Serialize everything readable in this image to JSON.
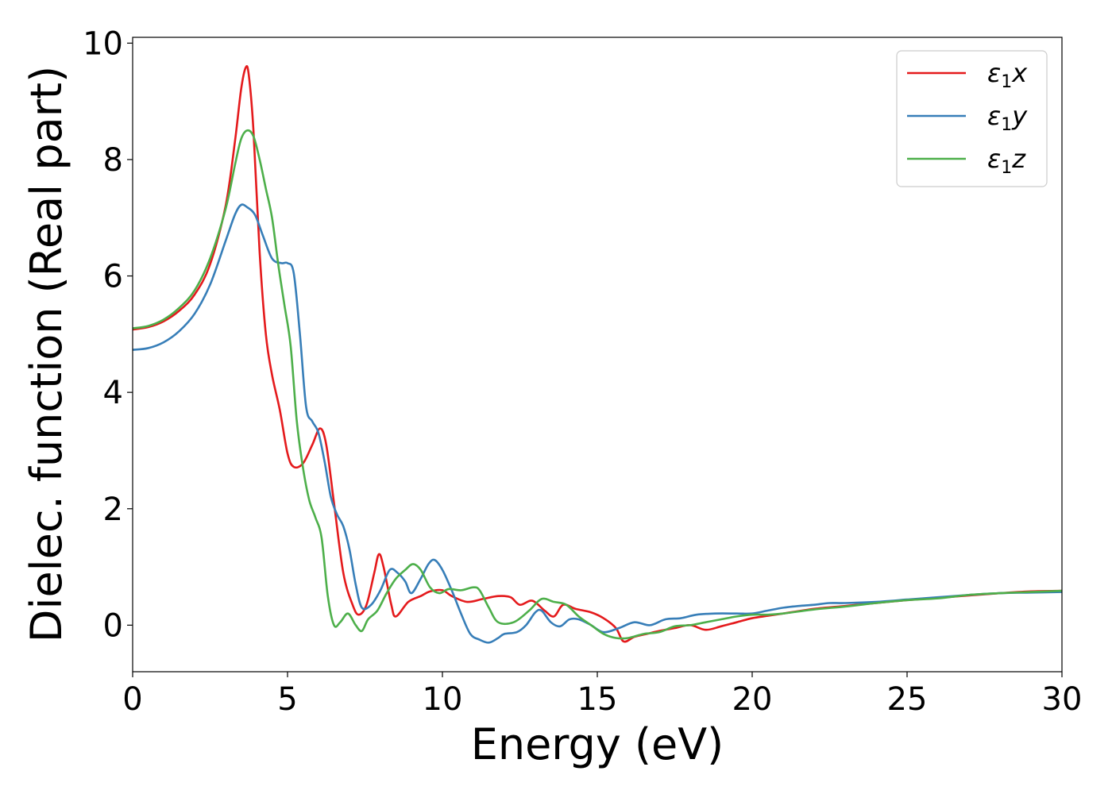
{
  "chart_data": {
    "type": "line",
    "xlabel": "Energy (eV)",
    "ylabel": "Dielec. function (Real part)",
    "xlim": [
      0,
      30
    ],
    "ylim": [
      -0.8,
      10.1
    ],
    "xticks": [
      0,
      5,
      10,
      15,
      20,
      25,
      30
    ],
    "yticks": [
      0,
      2,
      4,
      6,
      8,
      10
    ],
    "grid": false,
    "legend_position": "top-right",
    "series": [
      {
        "name": "ε1x",
        "legend": {
          "greek": "ε",
          "sub": "1",
          "axis": "x"
        },
        "color": "#e41a1c",
        "points": [
          [
            0,
            5.08
          ],
          [
            0.5,
            5.12
          ],
          [
            1,
            5.22
          ],
          [
            1.5,
            5.4
          ],
          [
            2,
            5.68
          ],
          [
            2.5,
            6.2
          ],
          [
            3,
            7.2
          ],
          [
            3.3,
            8.3
          ],
          [
            3.5,
            9.2
          ],
          [
            3.65,
            9.58
          ],
          [
            3.75,
            9.45
          ],
          [
            3.9,
            8.5
          ],
          [
            4.1,
            6.4
          ],
          [
            4.3,
            5.0
          ],
          [
            4.5,
            4.3
          ],
          [
            4.75,
            3.7
          ],
          [
            5.0,
            2.95
          ],
          [
            5.2,
            2.72
          ],
          [
            5.5,
            2.78
          ],
          [
            5.8,
            3.1
          ],
          [
            6.05,
            3.38
          ],
          [
            6.25,
            3.1
          ],
          [
            6.5,
            2.1
          ],
          [
            6.8,
            0.9
          ],
          [
            7.1,
            0.35
          ],
          [
            7.3,
            0.18
          ],
          [
            7.55,
            0.35
          ],
          [
            7.8,
            0.9
          ],
          [
            7.95,
            1.22
          ],
          [
            8.1,
            1.0
          ],
          [
            8.35,
            0.35
          ],
          [
            8.5,
            0.15
          ],
          [
            8.9,
            0.4
          ],
          [
            9.3,
            0.5
          ],
          [
            9.6,
            0.58
          ],
          [
            10.0,
            0.6
          ],
          [
            10.3,
            0.5
          ],
          [
            10.8,
            0.4
          ],
          [
            11.3,
            0.45
          ],
          [
            11.8,
            0.5
          ],
          [
            12.2,
            0.48
          ],
          [
            12.5,
            0.35
          ],
          [
            12.9,
            0.42
          ],
          [
            13.3,
            0.25
          ],
          [
            13.6,
            0.15
          ],
          [
            13.9,
            0.35
          ],
          [
            14.3,
            0.28
          ],
          [
            14.8,
            0.22
          ],
          [
            15.2,
            0.12
          ],
          [
            15.6,
            -0.05
          ],
          [
            15.85,
            -0.28
          ],
          [
            16.2,
            -0.2
          ],
          [
            16.6,
            -0.15
          ],
          [
            17.0,
            -0.1
          ],
          [
            17.5,
            -0.05
          ],
          [
            18.0,
            0.0
          ],
          [
            18.5,
            -0.08
          ],
          [
            19.0,
            -0.02
          ],
          [
            19.5,
            0.05
          ],
          [
            20,
            0.12
          ],
          [
            20.5,
            0.16
          ],
          [
            21,
            0.2
          ],
          [
            22,
            0.28
          ],
          [
            23,
            0.33
          ],
          [
            24,
            0.38
          ],
          [
            25,
            0.43
          ],
          [
            26,
            0.47
          ],
          [
            27,
            0.51
          ],
          [
            28,
            0.55
          ],
          [
            29,
            0.58
          ],
          [
            30,
            0.59
          ]
        ]
      },
      {
        "name": "ε1y",
        "legend": {
          "greek": "ε",
          "sub": "1",
          "axis": "y"
        },
        "color": "#377eb8",
        "points": [
          [
            0,
            4.73
          ],
          [
            0.5,
            4.76
          ],
          [
            1,
            4.86
          ],
          [
            1.5,
            5.05
          ],
          [
            2,
            5.35
          ],
          [
            2.5,
            5.85
          ],
          [
            3,
            6.6
          ],
          [
            3.3,
            7.05
          ],
          [
            3.5,
            7.22
          ],
          [
            3.7,
            7.18
          ],
          [
            3.95,
            7.05
          ],
          [
            4.2,
            6.7
          ],
          [
            4.5,
            6.3
          ],
          [
            4.8,
            6.22
          ],
          [
            5.0,
            6.22
          ],
          [
            5.2,
            6.05
          ],
          [
            5.4,
            5.0
          ],
          [
            5.6,
            3.75
          ],
          [
            5.8,
            3.5
          ],
          [
            6.0,
            3.3
          ],
          [
            6.2,
            2.8
          ],
          [
            6.4,
            2.2
          ],
          [
            6.6,
            1.9
          ],
          [
            6.8,
            1.7
          ],
          [
            7.0,
            1.3
          ],
          [
            7.2,
            0.7
          ],
          [
            7.4,
            0.3
          ],
          [
            7.7,
            0.35
          ],
          [
            8.0,
            0.6
          ],
          [
            8.3,
            0.95
          ],
          [
            8.55,
            0.9
          ],
          [
            8.8,
            0.75
          ],
          [
            9.0,
            0.55
          ],
          [
            9.3,
            0.8
          ],
          [
            9.55,
            1.05
          ],
          [
            9.75,
            1.12
          ],
          [
            10.0,
            0.95
          ],
          [
            10.3,
            0.6
          ],
          [
            10.6,
            0.2
          ],
          [
            10.9,
            -0.15
          ],
          [
            11.2,
            -0.25
          ],
          [
            11.5,
            -0.3
          ],
          [
            11.8,
            -0.22
          ],
          [
            12.0,
            -0.15
          ],
          [
            12.4,
            -0.12
          ],
          [
            12.7,
            0.0
          ],
          [
            13.0,
            0.22
          ],
          [
            13.2,
            0.25
          ],
          [
            13.5,
            0.05
          ],
          [
            13.8,
            -0.02
          ],
          [
            14.1,
            0.1
          ],
          [
            14.4,
            0.1
          ],
          [
            14.8,
            0.0
          ],
          [
            15.2,
            -0.12
          ],
          [
            15.7,
            -0.05
          ],
          [
            16.2,
            0.05
          ],
          [
            16.7,
            0.0
          ],
          [
            17.2,
            0.1
          ],
          [
            17.7,
            0.12
          ],
          [
            18.2,
            0.18
          ],
          [
            18.8,
            0.2
          ],
          [
            19.5,
            0.2
          ],
          [
            20,
            0.2
          ],
          [
            20.5,
            0.25
          ],
          [
            21.0,
            0.3
          ],
          [
            21.5,
            0.33
          ],
          [
            22,
            0.35
          ],
          [
            22.5,
            0.38
          ],
          [
            23,
            0.38
          ],
          [
            24,
            0.4
          ],
          [
            25,
            0.44
          ],
          [
            26,
            0.48
          ],
          [
            27,
            0.52
          ],
          [
            28,
            0.55
          ],
          [
            29,
            0.56
          ],
          [
            30,
            0.57
          ]
        ]
      },
      {
        "name": "ε1z",
        "legend": {
          "greek": "ε",
          "sub": "1",
          "axis": "z"
        },
        "color": "#4daf4a",
        "points": [
          [
            0,
            5.1
          ],
          [
            0.5,
            5.14
          ],
          [
            1,
            5.25
          ],
          [
            1.5,
            5.45
          ],
          [
            2,
            5.75
          ],
          [
            2.5,
            6.3
          ],
          [
            3,
            7.15
          ],
          [
            3.3,
            7.9
          ],
          [
            3.5,
            8.35
          ],
          [
            3.7,
            8.5
          ],
          [
            3.9,
            8.4
          ],
          [
            4.1,
            8.0
          ],
          [
            4.3,
            7.5
          ],
          [
            4.5,
            7.0
          ],
          [
            4.7,
            6.2
          ],
          [
            4.9,
            5.5
          ],
          [
            5.1,
            4.8
          ],
          [
            5.3,
            3.5
          ],
          [
            5.5,
            2.7
          ],
          [
            5.7,
            2.15
          ],
          [
            5.9,
            1.85
          ],
          [
            6.1,
            1.5
          ],
          [
            6.3,
            0.5
          ],
          [
            6.5,
            0.0
          ],
          [
            6.7,
            0.05
          ],
          [
            6.95,
            0.2
          ],
          [
            7.2,
            0.0
          ],
          [
            7.4,
            -0.1
          ],
          [
            7.6,
            0.1
          ],
          [
            7.9,
            0.25
          ],
          [
            8.2,
            0.55
          ],
          [
            8.5,
            0.8
          ],
          [
            8.8,
            0.95
          ],
          [
            9.05,
            1.05
          ],
          [
            9.3,
            0.95
          ],
          [
            9.6,
            0.65
          ],
          [
            9.9,
            0.55
          ],
          [
            10.2,
            0.62
          ],
          [
            10.6,
            0.6
          ],
          [
            11.0,
            0.65
          ],
          [
            11.2,
            0.6
          ],
          [
            11.5,
            0.3
          ],
          [
            11.8,
            0.05
          ],
          [
            12.3,
            0.05
          ],
          [
            12.8,
            0.25
          ],
          [
            13.2,
            0.45
          ],
          [
            13.6,
            0.4
          ],
          [
            14.0,
            0.35
          ],
          [
            14.4,
            0.15
          ],
          [
            14.8,
            0.0
          ],
          [
            15.2,
            -0.15
          ],
          [
            15.6,
            -0.22
          ],
          [
            16.0,
            -0.22
          ],
          [
            16.5,
            -0.15
          ],
          [
            17.0,
            -0.12
          ],
          [
            17.5,
            -0.02
          ],
          [
            18.0,
            0.0
          ],
          [
            18.5,
            0.05
          ],
          [
            19,
            0.1
          ],
          [
            19.5,
            0.15
          ],
          [
            20,
            0.18
          ],
          [
            20.5,
            0.18
          ],
          [
            21,
            0.2
          ],
          [
            22,
            0.27
          ],
          [
            23,
            0.32
          ],
          [
            24,
            0.38
          ],
          [
            25,
            0.43
          ],
          [
            26,
            0.46
          ],
          [
            27,
            0.52
          ],
          [
            28,
            0.55
          ],
          [
            29,
            0.57
          ],
          [
            30,
            0.59
          ]
        ]
      }
    ]
  }
}
